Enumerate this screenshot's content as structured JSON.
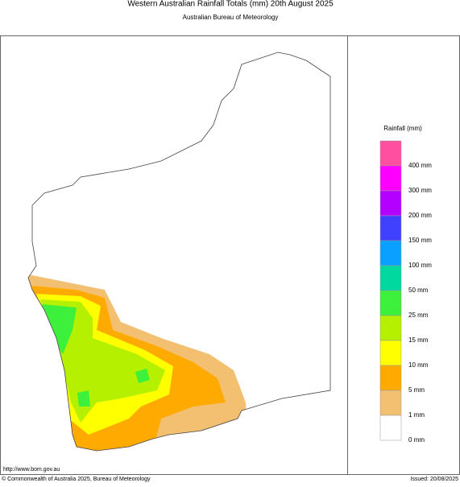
{
  "header": {
    "title": "Western Australian Rainfall Totals (mm) 20th August 2025",
    "subtitle": "Australian Bureau of Meteorology"
  },
  "legend": {
    "title": "Rainfall (mm)",
    "colors": [
      "#ff4fa0",
      "#ff00ff",
      "#b400ff",
      "#4040ff",
      "#0aa0ff",
      "#00d8a0",
      "#3cf03c",
      "#b4f000",
      "#ffff00",
      "#ffaa00",
      "#f2c070",
      "#ffffff"
    ],
    "labels": [
      "400 mm",
      "300 mm",
      "200 mm",
      "150 mm",
      "100 mm",
      "50 mm",
      "25 mm",
      "15 mm",
      "10 mm",
      "5 mm",
      "1 mm",
      "0 mm"
    ]
  },
  "footer": {
    "url": "http://www.bom.gov.au",
    "copyright": "© Commonwealth of Australia 2025, Bureau of Meteorology",
    "issued": "Issued: 20/08/2025"
  }
}
